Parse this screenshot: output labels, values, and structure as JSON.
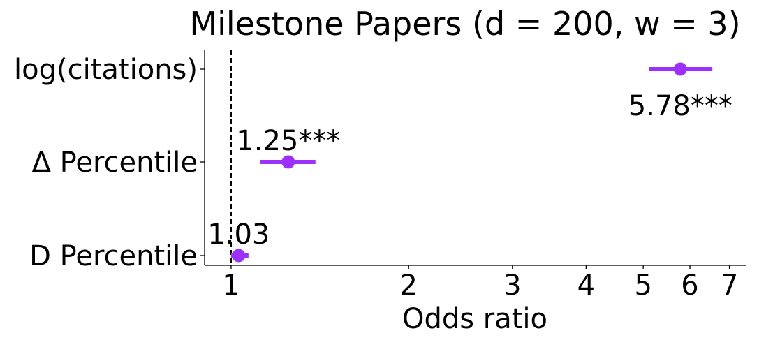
{
  "chart_data": {
    "type": "forest",
    "title": "Milestone Papers (d = 200, w = 3)",
    "xlabel": "Odds ratio",
    "ylabel": "",
    "xscale": "log",
    "xticks": [
      1,
      2,
      3,
      4,
      5,
      6,
      7
    ],
    "xtick_labels": [
      "1",
      "2",
      "3",
      "4",
      "5",
      "6",
      "7"
    ],
    "reference_line": 1,
    "color": "#9b30ff",
    "grid": false,
    "categories": [
      "log(citations)",
      "Δ Percentile",
      "D Percentile"
    ],
    "points": [
      {
        "category": "log(citations)",
        "estimate": 5.78,
        "ci_low": 5.12,
        "ci_high": 6.55,
        "label": "5.78***",
        "label_position": "below"
      },
      {
        "category": "Δ Percentile",
        "estimate": 1.25,
        "ci_low": 1.12,
        "ci_high": 1.39,
        "label": "1.25***",
        "label_position": "above"
      },
      {
        "category": "D Percentile",
        "estimate": 1.03,
        "ci_low": 1.0,
        "ci_high": 1.07,
        "label": "1.03",
        "label_position": "above"
      }
    ]
  }
}
